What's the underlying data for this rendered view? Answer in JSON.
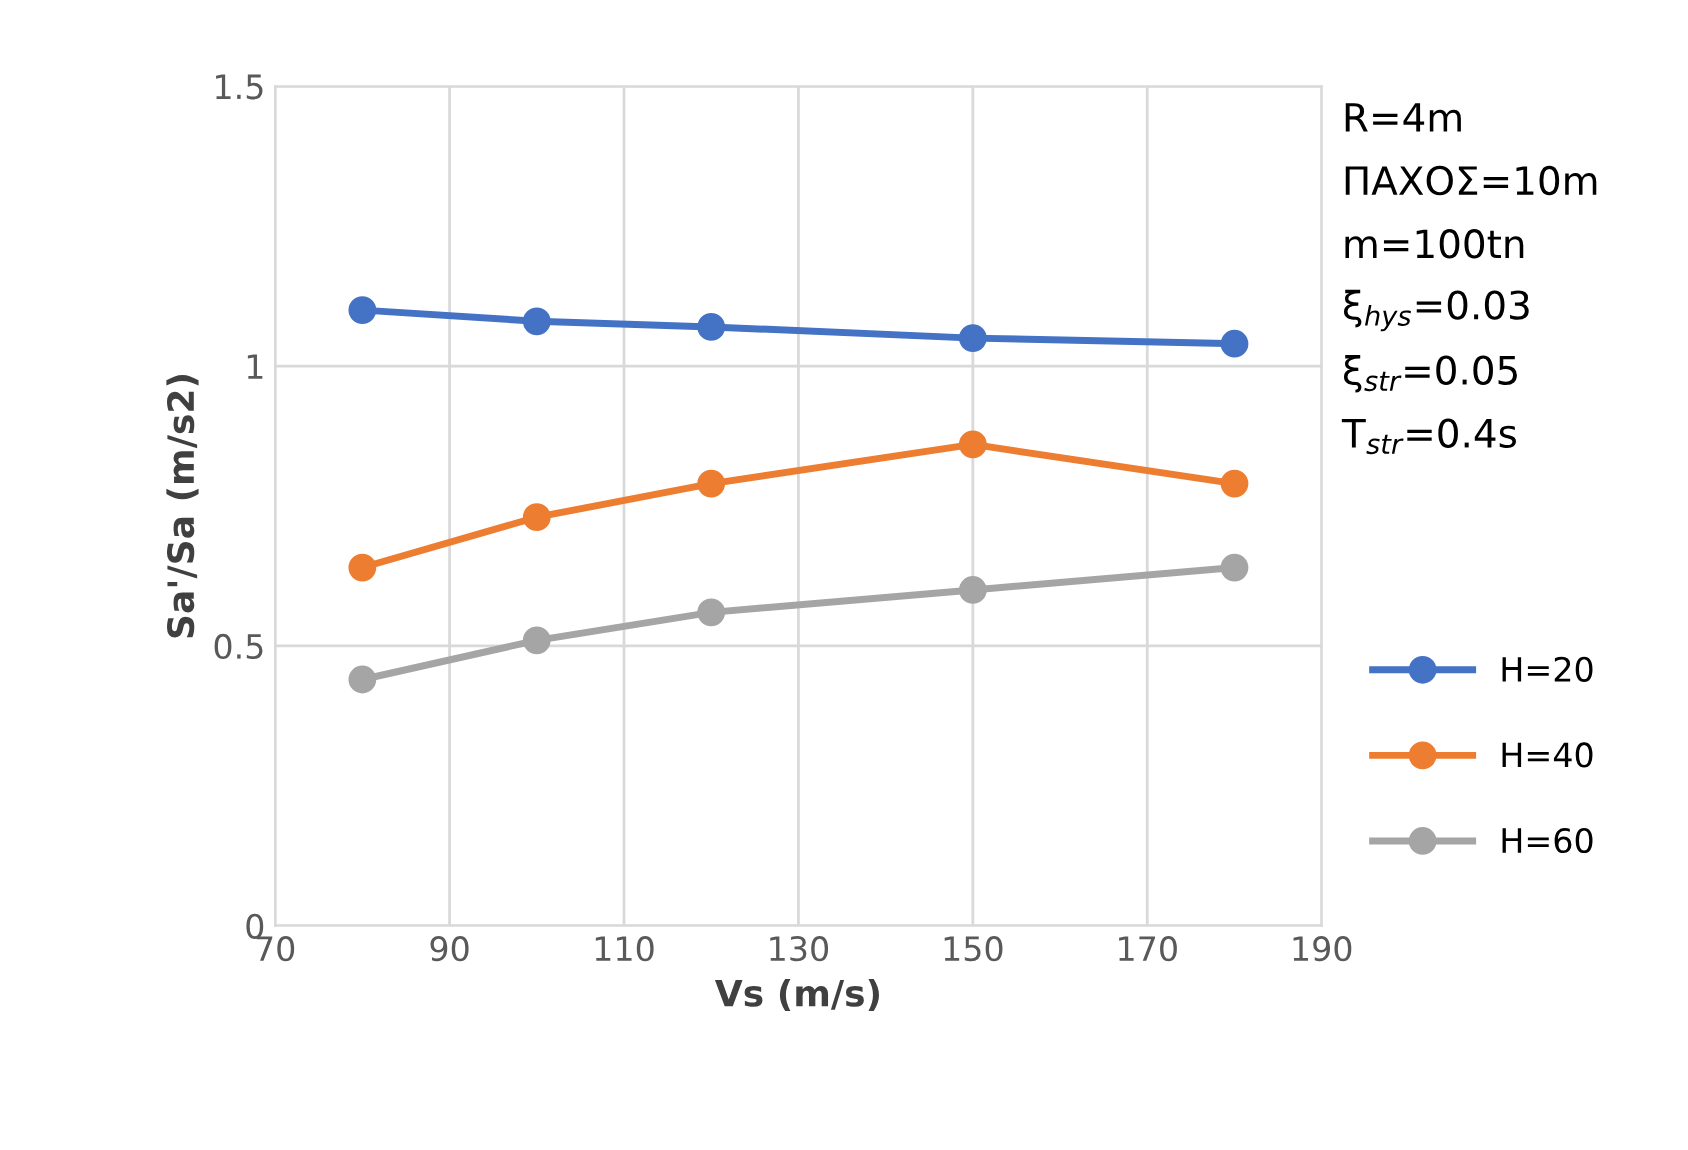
{
  "chart_data": {
    "type": "line",
    "xlabel": "Vs (m/s)",
    "ylabel": "Sa'/Sa (m/s2)",
    "x": [
      80,
      100,
      120,
      150,
      180
    ],
    "series": [
      {
        "name": "H=20",
        "color": "#4472c4",
        "values": [
          1.1,
          1.08,
          1.07,
          1.05,
          1.04
        ]
      },
      {
        "name": "H=40",
        "color": "#ed7d31",
        "values": [
          0.64,
          0.73,
          0.79,
          0.86,
          0.79
        ]
      },
      {
        "name": "H=60",
        "color": "#a5a5a5",
        "values": [
          0.44,
          0.51,
          0.56,
          0.6,
          0.64
        ]
      }
    ],
    "xlim": [
      70,
      190
    ],
    "xticks": [
      70,
      90,
      110,
      130,
      150,
      170,
      190
    ],
    "ylim": [
      0,
      1.5
    ],
    "yticks": [
      0,
      0.5,
      1,
      1.5
    ],
    "grid": true,
    "legend": "right",
    "marker": "circle",
    "line_style": "solid",
    "annotations": [
      "R=4m",
      "ΠΑΧΟΣ=10m",
      "m=100tn",
      "ξ$_{hys}$=0.03",
      "ξ$_{str}$=0.05",
      "T$_{str}$=0.4s"
    ]
  }
}
